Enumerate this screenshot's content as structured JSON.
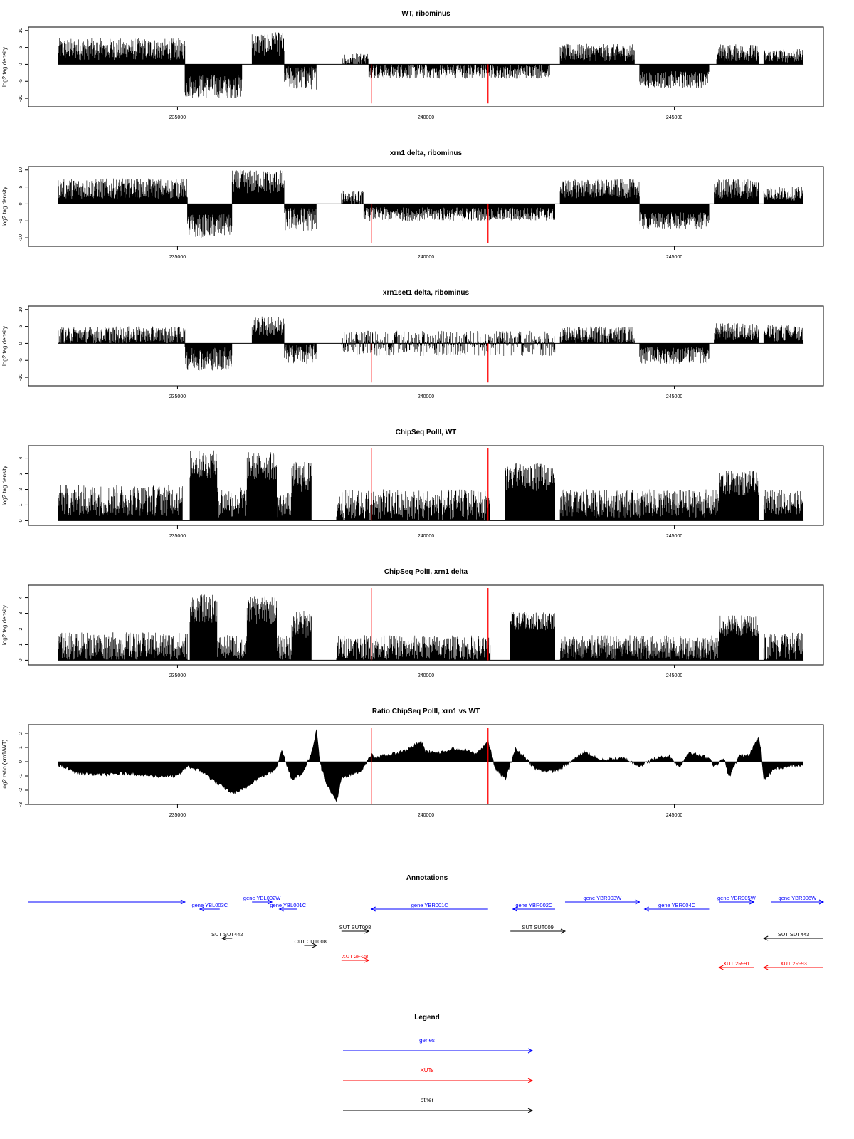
{
  "chart_data": [
    {
      "type": "bar",
      "title": "WT, ribominus",
      "xlabel": "",
      "ylabel": "log2 tag density",
      "xlim": [
        232000,
        248000
      ],
      "ylim": [
        -12.5,
        11
      ],
      "xticks": [
        235000,
        240000,
        245000
      ],
      "yticks": [
        10,
        5,
        0,
        -5,
        -10
      ],
      "data_range": [
        232600,
        247600
      ],
      "markers": [
        238900,
        241250
      ],
      "segments": [
        {
          "from": 232600,
          "to": 235150,
          "strand": "plus",
          "mean": 4.5,
          "amp": 3.2
        },
        {
          "from": 235150,
          "to": 236300,
          "strand": "minus",
          "mean": -6.5,
          "amp": 3.5
        },
        {
          "from": 236500,
          "to": 237150,
          "strand": "plus",
          "mean": 6.0,
          "amp": 3.5
        },
        {
          "from": 237150,
          "to": 237800,
          "strand": "minus",
          "mean": -4.0,
          "amp": 3.5
        },
        {
          "from": 238300,
          "to": 238850,
          "strand": "plus",
          "mean": 1.5,
          "amp": 2.0
        },
        {
          "from": 238850,
          "to": 242500,
          "strand": "minus",
          "mean": -2.0,
          "amp": 2.2
        },
        {
          "from": 242700,
          "to": 244200,
          "strand": "plus",
          "mean": 3.5,
          "amp": 2.5
        },
        {
          "from": 244300,
          "to": 245700,
          "strand": "minus",
          "mean": -4.5,
          "amp": 2.5
        },
        {
          "from": 245850,
          "to": 246700,
          "strand": "plus",
          "mean": 3.5,
          "amp": 2.5
        },
        {
          "from": 246800,
          "to": 247600,
          "strand": "plus",
          "mean": 2.5,
          "amp": 2.0
        }
      ]
    },
    {
      "type": "bar",
      "title": "xrn1 delta, ribominus",
      "xlabel": "",
      "ylabel": "log2 tag density",
      "xlim": [
        232000,
        248000
      ],
      "ylim": [
        -12.5,
        11
      ],
      "xticks": [
        235000,
        240000,
        245000
      ],
      "yticks": [
        10,
        5,
        0,
        -5,
        -10
      ],
      "data_range": [
        232600,
        247600
      ],
      "markers": [
        238900,
        241250
      ],
      "segments": [
        {
          "from": 232600,
          "to": 235200,
          "strand": "plus",
          "mean": 4.5,
          "amp": 3.0
        },
        {
          "from": 235200,
          "to": 236100,
          "strand": "minus",
          "mean": -6.5,
          "amp": 3.5
        },
        {
          "from": 236100,
          "to": 237150,
          "strand": "plus",
          "mean": 6.5,
          "amp": 3.5
        },
        {
          "from": 237150,
          "to": 237800,
          "strand": "minus",
          "mean": -4.5,
          "amp": 3.5
        },
        {
          "from": 238300,
          "to": 238750,
          "strand": "plus",
          "mean": 2.0,
          "amp": 2.0
        },
        {
          "from": 238750,
          "to": 242600,
          "strand": "minus",
          "mean": -3.0,
          "amp": 2.0
        },
        {
          "from": 242700,
          "to": 244300,
          "strand": "plus",
          "mean": 4.5,
          "amp": 2.8
        },
        {
          "from": 244300,
          "to": 245700,
          "strand": "minus",
          "mean": -5.0,
          "amp": 2.5
        },
        {
          "from": 245800,
          "to": 246700,
          "strand": "plus",
          "mean": 4.5,
          "amp": 3.0
        },
        {
          "from": 246800,
          "to": 247600,
          "strand": "plus",
          "mean": 3.0,
          "amp": 2.0
        }
      ]
    },
    {
      "type": "bar",
      "title": "xrn1set1 delta, ribominus",
      "xlabel": "",
      "ylabel": "log2 tag density",
      "xlim": [
        232000,
        248000
      ],
      "ylim": [
        -12.5,
        11
      ],
      "xticks": [
        235000,
        240000,
        245000
      ],
      "yticks": [
        10,
        5,
        0,
        -5,
        -10
      ],
      "data_range": [
        232600,
        247600
      ],
      "markers": [
        238900,
        241250
      ],
      "segments": [
        {
          "from": 232600,
          "to": 235150,
          "strand": "plus",
          "mean": 2.5,
          "amp": 2.5
        },
        {
          "from": 235150,
          "to": 236100,
          "strand": "minus",
          "mean": -4.5,
          "amp": 3.5
        },
        {
          "from": 236500,
          "to": 237150,
          "strand": "plus",
          "mean": 5.0,
          "amp": 3.0
        },
        {
          "from": 237150,
          "to": 237800,
          "strand": "minus",
          "mean": -3.0,
          "amp": 3.0
        },
        {
          "from": 238300,
          "to": 242600,
          "strand": "mixed",
          "mean": 1.5,
          "amp": 2.2
        },
        {
          "from": 242700,
          "to": 244200,
          "strand": "plus",
          "mean": 2.5,
          "amp": 2.5
        },
        {
          "from": 244300,
          "to": 245700,
          "strand": "minus",
          "mean": -3.5,
          "amp": 2.5
        },
        {
          "from": 245800,
          "to": 246700,
          "strand": "plus",
          "mean": 3.5,
          "amp": 2.5
        },
        {
          "from": 246800,
          "to": 247600,
          "strand": "plus",
          "mean": 3.0,
          "amp": 2.5
        }
      ]
    },
    {
      "type": "bar",
      "title": "ChipSeq PolII, WT",
      "xlabel": "",
      "ylabel": "log2 tag density",
      "xlim": [
        232000,
        248000
      ],
      "ylim": [
        -0.3,
        4.8
      ],
      "xticks": [
        235000,
        240000,
        245000
      ],
      "yticks": [
        0,
        1,
        2,
        3,
        4
      ],
      "data_range": [
        232600,
        247600
      ],
      "markers": [
        238900,
        241250
      ],
      "segments": [
        {
          "from": 232600,
          "to": 235100,
          "strand": "plus",
          "mean": 1.3,
          "amp": 1.0
        },
        {
          "from": 235250,
          "to": 235800,
          "strand": "plus",
          "mean": 3.6,
          "amp": 0.9
        },
        {
          "from": 235800,
          "to": 236400,
          "strand": "plus",
          "mean": 1.2,
          "amp": 1.0
        },
        {
          "from": 236400,
          "to": 237000,
          "strand": "plus",
          "mean": 3.5,
          "amp": 0.9
        },
        {
          "from": 237000,
          "to": 237300,
          "strand": "plus",
          "mean": 1.0,
          "amp": 0.8
        },
        {
          "from": 237300,
          "to": 237700,
          "strand": "plus",
          "mean": 2.8,
          "amp": 1.0
        },
        {
          "from": 238200,
          "to": 241300,
          "strand": "plus",
          "mean": 1.0,
          "amp": 1.0
        },
        {
          "from": 241600,
          "to": 242600,
          "strand": "plus",
          "mean": 2.8,
          "amp": 0.9
        },
        {
          "from": 242700,
          "to": 245900,
          "strand": "plus",
          "mean": 1.1,
          "amp": 0.9
        },
        {
          "from": 245900,
          "to": 246700,
          "strand": "plus",
          "mean": 2.4,
          "amp": 0.8
        },
        {
          "from": 246800,
          "to": 247600,
          "strand": "plus",
          "mean": 1.2,
          "amp": 0.8
        }
      ]
    },
    {
      "type": "bar",
      "title": "ChipSeq PolII, xrn1 delta",
      "xlabel": "",
      "ylabel": "log2 tag density",
      "xlim": [
        232000,
        248000
      ],
      "ylim": [
        -0.3,
        4.8
      ],
      "xticks": [
        235000,
        240000,
        245000
      ],
      "yticks": [
        0,
        1,
        2,
        3,
        4
      ],
      "data_range": [
        232600,
        247600
      ],
      "markers": [
        238900,
        241250
      ],
      "segments": [
        {
          "from": 232600,
          "to": 235200,
          "strand": "plus",
          "mean": 0.9,
          "amp": 0.9
        },
        {
          "from": 235250,
          "to": 235800,
          "strand": "plus",
          "mean": 3.3,
          "amp": 0.9
        },
        {
          "from": 235800,
          "to": 236400,
          "strand": "plus",
          "mean": 0.8,
          "amp": 0.8
        },
        {
          "from": 236400,
          "to": 237000,
          "strand": "plus",
          "mean": 3.2,
          "amp": 0.9
        },
        {
          "from": 237000,
          "to": 237300,
          "strand": "plus",
          "mean": 0.8,
          "amp": 0.8
        },
        {
          "from": 237300,
          "to": 237700,
          "strand": "plus",
          "mean": 2.3,
          "amp": 0.9
        },
        {
          "from": 238200,
          "to": 241300,
          "strand": "plus",
          "mean": 0.8,
          "amp": 0.8
        },
        {
          "from": 241700,
          "to": 242600,
          "strand": "plus",
          "mean": 2.5,
          "amp": 0.6
        },
        {
          "from": 242700,
          "to": 245900,
          "strand": "plus",
          "mean": 0.8,
          "amp": 0.8
        },
        {
          "from": 245900,
          "to": 246700,
          "strand": "plus",
          "mean": 2.2,
          "amp": 0.7
        },
        {
          "from": 246800,
          "to": 247600,
          "strand": "plus",
          "mean": 0.9,
          "amp": 0.9
        }
      ]
    },
    {
      "type": "area",
      "title": "Ratio ChipSeq PolII, xrn1 vs WT",
      "xlabel": "",
      "ylabel": "log2 ratio (xrn1/WT)",
      "xlim": [
        232000,
        248000
      ],
      "ylim": [
        -3,
        2.6
      ],
      "xticks": [
        235000,
        240000,
        245000
      ],
      "yticks": [
        2,
        1,
        0,
        -1,
        -2,
        -3
      ],
      "markers": [
        238900,
        241250
      ],
      "x": [
        232600,
        233000,
        233500,
        234000,
        234500,
        235000,
        235200,
        235500,
        235800,
        236100,
        236300,
        236600,
        236900,
        237000,
        237100,
        237300,
        237500,
        237700,
        237800,
        237850,
        237900,
        238000,
        238200,
        238300,
        238500,
        238700,
        238900,
        239000,
        239300,
        239600,
        239900,
        240000,
        240300,
        240500,
        240800,
        241000,
        241250,
        241400,
        241600,
        241800,
        242000,
        242200,
        242500,
        242700,
        243000,
        243200,
        243500,
        243800,
        244000,
        244300,
        244600,
        244900,
        245100,
        245300,
        245500,
        245700,
        245800,
        246000,
        246100,
        246300,
        246500,
        246700,
        246750,
        246800,
        247000,
        247300,
        247600
      ],
      "y": [
        -0.2,
        -0.8,
        -0.9,
        -0.8,
        -1.0,
        -1.0,
        -0.3,
        -0.7,
        -1.5,
        -2.2,
        -2.0,
        -1.2,
        -0.7,
        -0.3,
        0.8,
        -1.2,
        -0.9,
        0.6,
        2.3,
        0.5,
        -0.5,
        -1.5,
        -2.8,
        -1.2,
        -0.9,
        -0.6,
        0.5,
        0.3,
        0.5,
        0.8,
        1.4,
        0.7,
        0.6,
        0.9,
        0.8,
        0.5,
        1.4,
        -0.5,
        -1.2,
        0.9,
        0.3,
        -0.5,
        -0.7,
        -0.5,
        0.2,
        0.7,
        0.1,
        0.2,
        0.2,
        -0.3,
        0.2,
        0.4,
        -0.4,
        0.7,
        0.4,
        0.3,
        -0.3,
        0.2,
        -1.1,
        0.4,
        0.5,
        1.7,
        0.7,
        -1.3,
        -0.5,
        -0.3,
        -0.2
      ]
    }
  ],
  "annotations": {
    "title": "Annotations",
    "xlim": [
      232000,
      248000
    ],
    "features": [
      {
        "kind": "gene",
        "label": "",
        "from": 232000,
        "to": 235150,
        "dir": "right",
        "row": 1,
        "color": "#0000ff"
      },
      {
        "kind": "gene",
        "label": "gene YBL003C",
        "from": 235450,
        "to": 235850,
        "dir": "left",
        "row": 2,
        "color": "#0000ff"
      },
      {
        "kind": "gene",
        "label": "gene YBL002W",
        "from": 236500,
        "to": 236900,
        "dir": "right",
        "row": 1,
        "color": "#0000ff"
      },
      {
        "kind": "gene",
        "label": "gene YBL001C",
        "from": 237050,
        "to": 237400,
        "dir": "left",
        "row": 2,
        "color": "#0000ff"
      },
      {
        "kind": "gene",
        "label": "gene YBR001C",
        "from": 238900,
        "to": 241250,
        "dir": "left",
        "row": 2,
        "color": "#0000ff"
      },
      {
        "kind": "gene",
        "label": "gene YBR002C",
        "from": 241750,
        "to": 242600,
        "dir": "left",
        "row": 2,
        "color": "#0000ff"
      },
      {
        "kind": "gene",
        "label": "gene YBR003W",
        "from": 242800,
        "to": 244300,
        "dir": "right",
        "row": 1,
        "color": "#0000ff"
      },
      {
        "kind": "gene",
        "label": "gene YBR004C",
        "from": 244400,
        "to": 245700,
        "dir": "left",
        "row": 2,
        "color": "#0000ff"
      },
      {
        "kind": "gene",
        "label": "gene YBR005W",
        "from": 245900,
        "to": 246600,
        "dir": "right",
        "row": 1,
        "color": "#0000ff"
      },
      {
        "kind": "gene",
        "label": "gene YBR006W",
        "from": 246950,
        "to": 248000,
        "dir": "right",
        "row": 1,
        "color": "#0000ff"
      },
      {
        "kind": "other",
        "label": "SUT SUT442",
        "from": 235900,
        "to": 236100,
        "dir": "left",
        "row": 4,
        "color": "#000000"
      },
      {
        "kind": "other",
        "label": "CUT CUT008",
        "from": 237550,
        "to": 237800,
        "dir": "right",
        "row": 5,
        "color": "#000000"
      },
      {
        "kind": "other",
        "label": "SUT SUT008",
        "from": 238300,
        "to": 238850,
        "dir": "right",
        "row": 3,
        "color": "#000000"
      },
      {
        "kind": "other",
        "label": "SUT SUT009",
        "from": 241700,
        "to": 242800,
        "dir": "right",
        "row": 3,
        "color": "#000000"
      },
      {
        "kind": "other",
        "label": "SUT SUT443",
        "from": 246800,
        "to": 248000,
        "dir": "left",
        "row": 4,
        "color": "#000000"
      },
      {
        "kind": "xut",
        "label": "XUT 2F-28",
        "from": 238300,
        "to": 238850,
        "dir": "right",
        "row": 6,
        "color": "#ff0000"
      },
      {
        "kind": "xut",
        "label": "XUT 2R-91",
        "from": 245900,
        "to": 246600,
        "dir": "left",
        "row": 7,
        "color": "#ff0000"
      },
      {
        "kind": "xut",
        "label": "XUT 2R-93",
        "from": 246800,
        "to": 248000,
        "dir": "left",
        "row": 7,
        "color": "#ff0000"
      }
    ]
  },
  "legend": {
    "title": "Legend",
    "items": [
      {
        "label": "genes",
        "color": "#0000ff"
      },
      {
        "label": "XUTs",
        "color": "#ff0000"
      },
      {
        "label": "other",
        "color": "#000000"
      }
    ]
  },
  "colors": {
    "data": "#000000",
    "marker": "#ff0000",
    "axis": "#000000"
  }
}
